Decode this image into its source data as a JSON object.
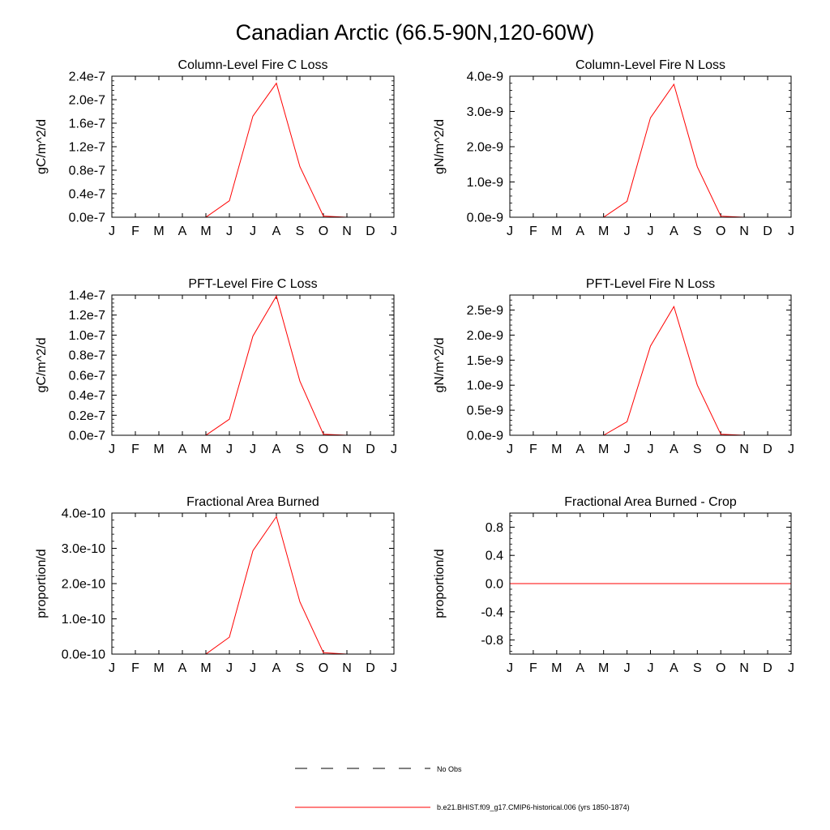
{
  "figure": {
    "title": "Canadian Arctic (66.5-90N,120-60W)"
  },
  "chart_data": [
    {
      "type": "line",
      "title": "Column-Level Fire C Loss",
      "ylabel": "gC/m^2/d",
      "categories": [
        "J",
        "F",
        "M",
        "A",
        "M",
        "J",
        "J",
        "A",
        "S",
        "O",
        "N",
        "D",
        "J"
      ],
      "ylim": [
        0,
        2.4e-07
      ],
      "yticks": [
        0,
        4e-08,
        8e-08,
        1.2e-07,
        1.6e-07,
        2e-07,
        2.4e-07
      ],
      "yticklabels": [
        "0.0e-7",
        "0.4e-7",
        "0.8e-7",
        "1.2e-7",
        "1.6e-7",
        "2.0e-7",
        "2.4e-7"
      ],
      "series": [
        {
          "values": [
            0,
            0,
            0,
            0,
            0,
            2.8e-08,
            1.72e-07,
            2.28e-07,
            8.6e-08,
            2e-09,
            0,
            0,
            0
          ]
        }
      ]
    },
    {
      "type": "line",
      "title": "Column-Level Fire N Loss",
      "ylabel": "gN/m^2/d",
      "categories": [
        "J",
        "F",
        "M",
        "A",
        "M",
        "J",
        "J",
        "A",
        "S",
        "O",
        "N",
        "D",
        "J"
      ],
      "ylim": [
        0,
        4e-09
      ],
      "yticks": [
        0,
        1e-09,
        2e-09,
        3e-09,
        4e-09
      ],
      "yticklabels": [
        "0.0e-9",
        "1.0e-9",
        "2.0e-9",
        "3.0e-9",
        "4.0e-9"
      ],
      "series": [
        {
          "values": [
            0,
            0,
            0,
            0,
            0,
            4.5e-10,
            2.82e-09,
            3.77e-09,
            1.43e-09,
            3e-11,
            0,
            0,
            0
          ]
        }
      ]
    },
    {
      "type": "line",
      "title": "PFT-Level Fire C Loss",
      "ylabel": "gC/m^2/d",
      "categories": [
        "J",
        "F",
        "M",
        "A",
        "M",
        "J",
        "J",
        "A",
        "S",
        "O",
        "N",
        "D",
        "J"
      ],
      "ylim": [
        0,
        1.4e-07
      ],
      "yticks": [
        0,
        2e-08,
        4e-08,
        6e-08,
        8e-08,
        1e-07,
        1.2e-07,
        1.4e-07
      ],
      "yticklabels": [
        "0.0e-7",
        "0.2e-7",
        "0.4e-7",
        "0.6e-7",
        "0.8e-7",
        "1.0e-7",
        "1.2e-7",
        "1.4e-7"
      ],
      "series": [
        {
          "values": [
            0,
            0,
            0,
            0,
            0,
            1.6e-08,
            9.9e-08,
            1.39e-07,
            5.4e-08,
            1e-09,
            0,
            0,
            0
          ]
        }
      ]
    },
    {
      "type": "line",
      "title": "PFT-Level Fire N Loss",
      "ylabel": "gN/m^2/d",
      "categories": [
        "J",
        "F",
        "M",
        "A",
        "M",
        "J",
        "J",
        "A",
        "S",
        "O",
        "N",
        "D",
        "J"
      ],
      "ylim": [
        0,
        2.8e-09
      ],
      "yticks": [
        0,
        5e-10,
        1e-09,
        1.5e-09,
        2e-09,
        2.5e-09
      ],
      "yticklabels": [
        "0.0e-9",
        "0.5e-9",
        "1.0e-9",
        "1.5e-9",
        "2.0e-9",
        "2.5e-9"
      ],
      "series": [
        {
          "values": [
            0,
            0,
            0,
            0,
            0,
            2.7e-10,
            1.78e-09,
            2.57e-09,
            1e-09,
            2e-11,
            0,
            0,
            0
          ]
        }
      ]
    },
    {
      "type": "line",
      "title": "Fractional Area Burned",
      "ylabel": "proportion/d",
      "categories": [
        "J",
        "F",
        "M",
        "A",
        "M",
        "J",
        "J",
        "A",
        "S",
        "O",
        "N",
        "D",
        "J"
      ],
      "ylim": [
        0,
        4e-10
      ],
      "yticks": [
        0,
        1e-10,
        2e-10,
        3e-10,
        4e-10
      ],
      "yticklabels": [
        "0.0e-10",
        "1.0e-10",
        "2.0e-10",
        "3.0e-10",
        "4.0e-10"
      ],
      "series": [
        {
          "values": [
            0,
            0,
            0,
            0,
            0,
            4.8e-11,
            2.93e-10,
            3.9e-10,
            1.48e-10,
            4e-12,
            0,
            0,
            0
          ]
        }
      ]
    },
    {
      "type": "line",
      "title": "Fractional Area Burned - Crop",
      "ylabel": "proportion/d",
      "categories": [
        "J",
        "F",
        "M",
        "A",
        "M",
        "J",
        "J",
        "A",
        "S",
        "O",
        "N",
        "D",
        "J"
      ],
      "ylim": [
        -1,
        1
      ],
      "yticks": [
        -0.8,
        -0.4,
        0,
        0.4,
        0.8
      ],
      "yticklabels": [
        "-0.8",
        "-0.4",
        "0.0",
        "0.4",
        "0.8"
      ],
      "series": [
        {
          "values": [
            0,
            0,
            0,
            0,
            0,
            0,
            0,
            0,
            0,
            0,
            0,
            0,
            0
          ]
        }
      ]
    }
  ],
  "legend": {
    "placement": "bottom-center",
    "items": [
      {
        "label": "No Obs",
        "style": "dashed",
        "color": "#000000"
      },
      {
        "label": "b.e21.BHIST.f09_g17.CMIP6-historical.006 (yrs 1850-1874)",
        "style": "solid",
        "color": "#ff0000"
      }
    ]
  },
  "colors": {
    "series": "#ff0000",
    "axes": "#000000"
  }
}
